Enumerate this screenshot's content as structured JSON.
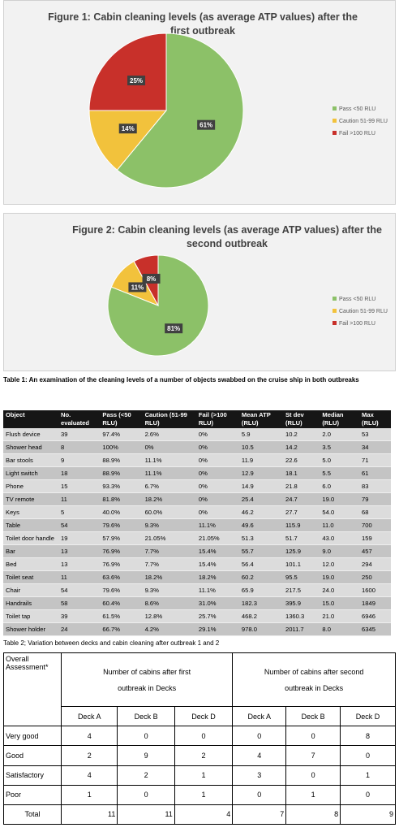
{
  "chart_data": [
    {
      "type": "pie",
      "title": "Figure 1: Cabin cleaning levels (as average ATP values) after the first outbreak",
      "categories": [
        "Pass <50 RLU",
        "Caution 51-99 RLU",
        "Fail >100 RLU"
      ],
      "values": [
        61,
        14,
        25
      ],
      "value_labels": [
        "61%",
        "14%",
        "25%"
      ],
      "colors": [
        "#8cc168",
        "#f2c23c",
        "#c8302a"
      ]
    },
    {
      "type": "pie",
      "title": "Figure 2: Cabin cleaning levels (as average ATP values) after the second outbreak",
      "categories": [
        "Pass <50 RLU",
        "Caution 51-99 RLU",
        "Fail >100 RLU"
      ],
      "values": [
        81,
        11,
        8
      ],
      "value_labels": [
        "81%",
        "11%",
        "8%"
      ],
      "colors": [
        "#8cc168",
        "#f2c23c",
        "#c8302a"
      ]
    }
  ],
  "table1": {
    "caption": "Table 1: An examination of the cleaning levels of a number of objects swabbed on the cruise ship in both outbreaks",
    "columns": [
      "Object",
      "No. evaluated",
      "Pass (<50 RLU)",
      "Caution (51-99 RLU)",
      "Fail (>100 RLU)",
      "Mean ATP (RLU)",
      "St dev (RLU)",
      "Median (RLU)",
      "Max (RLU)"
    ],
    "rows": [
      [
        "Flush device",
        "39",
        "97.4%",
        "2.6%",
        "0%",
        "5.9",
        "10.2",
        "2.0",
        "53"
      ],
      [
        "Shower head",
        "8",
        "100%",
        "0%",
        "0%",
        "10.5",
        "14.2",
        "3.5",
        "34"
      ],
      [
        "Bar stools",
        "9",
        "88.9%",
        "11.1%",
        "0%",
        "11.9",
        "22.6",
        "5.0",
        "71"
      ],
      [
        "Light switch",
        "18",
        "88.9%",
        "11.1%",
        "0%",
        "12.9",
        "18.1",
        "5.5",
        "61"
      ],
      [
        "Phone",
        "15",
        "93.3%",
        "6.7%",
        "0%",
        "14.9",
        "21.8",
        "6.0",
        "83"
      ],
      [
        "TV remote",
        "11",
        "81.8%",
        "18.2%",
        "0%",
        "25.4",
        "24.7",
        "19.0",
        "79"
      ],
      [
        "Keys",
        "5",
        "40.0%",
        "60.0%",
        "0%",
        "46.2",
        "27.7",
        "54.0",
        "68"
      ],
      [
        "Table",
        "54",
        "79.6%",
        "9.3%",
        "11.1%",
        "49.6",
        "115.9",
        "11.0",
        "700"
      ],
      [
        "Toilet door handle",
        "19",
        "57.9%",
        "21.05%",
        "21.05%",
        "51.3",
        "51.7",
        "43.0",
        "159"
      ],
      [
        "Bar",
        "13",
        "76.9%",
        "7.7%",
        "15.4%",
        "55.7",
        "125.9",
        "9.0",
        "457"
      ],
      [
        "Bed",
        "13",
        "76.9%",
        "7.7%",
        "15.4%",
        "56.4",
        "101.1",
        "12.0",
        "294"
      ],
      [
        "Toilet seat",
        "11",
        "63.6%",
        "18.2%",
        "18.2%",
        "60.2",
        "95.5",
        "19.0",
        "250"
      ],
      [
        "Chair",
        "54",
        "79.6%",
        "9.3%",
        "11.1%",
        "65.9",
        "217.5",
        "24.0",
        "1600"
      ],
      [
        "Handrails",
        "58",
        "60.4%",
        "8.6%",
        "31.0%",
        "182.3",
        "395.9",
        "15.0",
        "1849"
      ],
      [
        "Toilet tap",
        "39",
        "61.5%",
        "12.8%",
        "25.7%",
        "468.2",
        "1360.3",
        "21.0",
        "6946"
      ],
      [
        "Shower holder",
        "24",
        "66.7%",
        "4.2%",
        "29.1%",
        "978.0",
        "2011.7",
        "8.0",
        "6345"
      ]
    ]
  },
  "table2": {
    "caption": "Table 2; Variation between decks and cabin cleaning after outbreak 1 and 2",
    "assessment": "Overall Assessment*",
    "first": "Number of cabins after first outbreak in Decks",
    "second": "Number of cabins after second outbreak in Decks",
    "decks": [
      "Deck A",
      "Deck B",
      "Deck D",
      "Deck A",
      "Deck B",
      "Deck D"
    ],
    "rows": [
      [
        "Very good",
        "4",
        "0",
        "0",
        "0",
        "0",
        "8"
      ],
      [
        "Good",
        "2",
        "9",
        "2",
        "4",
        "7",
        "0"
      ],
      [
        "Satisfactory",
        "4",
        "2",
        "1",
        "3",
        "0",
        "1"
      ],
      [
        "Poor",
        "1",
        "0",
        "1",
        "0",
        "1",
        "0"
      ],
      [
        "Total",
        "11",
        "11",
        "4",
        "7",
        "8",
        "9"
      ]
    ]
  }
}
